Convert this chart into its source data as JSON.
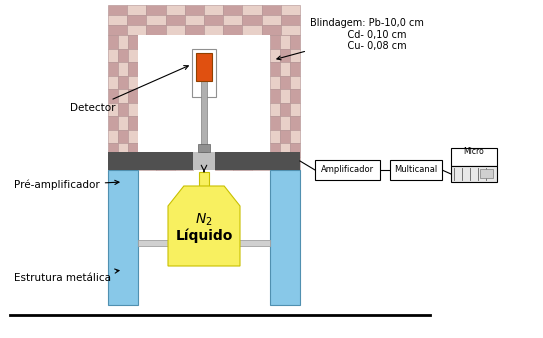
{
  "bg_color": "#ffffff",
  "fig_width": 5.43,
  "fig_height": 3.38,
  "dpi": 100,
  "labels": {
    "blindagem": "Blindagem: Pb-10,0 cm\n            Cd- 0,10 cm\n            Cu- 0,08 cm",
    "detector": "Detector",
    "pre_amp": "Pré-amplificador",
    "estrutura": "Estrutura metálica",
    "amplificador": "Amplificador",
    "multicanal": "Multicanal",
    "micro": "Micro",
    "n2_line1": "$N_2$",
    "n2_line2": "Líquido"
  },
  "colors": {
    "brick1": "#c8a0a0",
    "brick2": "#e8d0c8",
    "brick_edge": "#b09090",
    "white": "#ffffff",
    "blue_pillar": "#88c8e8",
    "blue_pillar_edge": "#5090b0",
    "yellow": "#f8f060",
    "yellow_edge": "#c8c000",
    "dark_band": "#505050",
    "gray_stem": "#c0c0c0",
    "gray_stem_edge": "#808080",
    "orange": "#e05010",
    "orange_edge": "#904000",
    "light_gray": "#e0e0e0",
    "platform": "#c8c8c8",
    "ground": "#000000",
    "black": "#000000"
  }
}
